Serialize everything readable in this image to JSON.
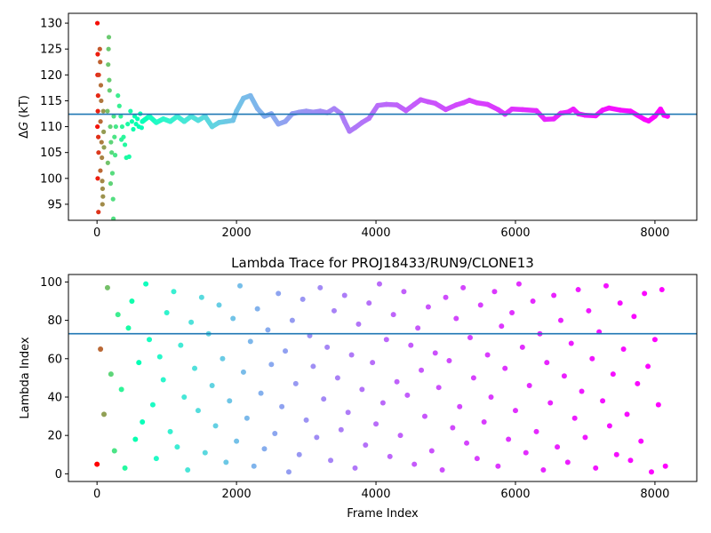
{
  "chart_data": [
    {
      "type": "scatter",
      "title": "",
      "xlabel": "",
      "ylabel_symbol": "Δ",
      "ylabel_var": "G",
      "ylabel_unit": " (kT)",
      "xlim": [
        -410,
        8600
      ],
      "ylim": [
        91.9,
        131.9
      ],
      "xticks": [
        0,
        2000,
        4000,
        6000,
        8000
      ],
      "yticks": [
        95,
        100,
        105,
        110,
        115,
        120,
        125,
        130
      ],
      "hline": 112.4,
      "hline_color": "#1f77b4",
      "colormap": "rainbow",
      "grid": false,
      "early_points": [
        [
          5,
          130
        ],
        [
          10,
          124
        ],
        [
          8,
          120
        ],
        [
          15,
          116
        ],
        [
          12,
          113
        ],
        [
          6,
          110
        ],
        [
          18,
          108
        ],
        [
          10,
          100
        ],
        [
          20,
          93.5
        ],
        [
          25,
          120
        ],
        [
          22,
          105
        ],
        [
          40,
          125
        ],
        [
          45,
          122.5
        ],
        [
          55,
          118
        ],
        [
          60,
          115
        ],
        [
          50,
          111
        ],
        [
          65,
          107
        ],
        [
          70,
          104
        ],
        [
          48,
          101.5
        ],
        [
          75,
          99.5
        ],
        [
          80,
          98
        ],
        [
          85,
          96.5
        ],
        [
          78,
          95
        ],
        [
          90,
          113
        ],
        [
          95,
          109
        ],
        [
          100,
          106
        ],
        [
          170,
          127.3
        ],
        [
          165,
          125
        ],
        [
          160,
          122
        ],
        [
          175,
          119
        ],
        [
          180,
          117
        ],
        [
          150,
          113
        ],
        [
          190,
          110
        ],
        [
          200,
          107
        ],
        [
          210,
          105
        ],
        [
          155,
          103
        ],
        [
          220,
          101
        ],
        [
          195,
          99
        ],
        [
          230,
          96
        ],
        [
          235,
          92.2
        ],
        [
          240,
          112
        ],
        [
          250,
          108
        ],
        [
          260,
          104.5
        ],
        [
          270,
          110
        ],
        [
          300,
          116
        ],
        [
          320,
          114
        ],
        [
          340,
          112
        ],
        [
          360,
          110
        ],
        [
          380,
          108
        ],
        [
          400,
          106.5
        ],
        [
          420,
          104
        ],
        [
          440,
          110.5
        ],
        [
          460,
          104.2
        ],
        [
          350,
          107.5
        ],
        [
          480,
          113
        ],
        [
          500,
          111
        ],
        [
          520,
          109.5
        ],
        [
          540,
          112
        ],
        [
          560,
          110.5
        ],
        [
          580,
          111.5
        ],
        [
          600,
          110
        ],
        [
          620,
          112.5
        ],
        [
          640,
          109.8
        ]
      ],
      "trace": [
        [
          650,
          111
        ],
        [
          750,
          112
        ],
        [
          850,
          110.8
        ],
        [
          950,
          111.5
        ],
        [
          1050,
          111
        ],
        [
          1150,
          112
        ],
        [
          1250,
          111
        ],
        [
          1350,
          112
        ],
        [
          1450,
          111.2
        ],
        [
          1550,
          112
        ],
        [
          1650,
          110
        ],
        [
          1750,
          110.8
        ],
        [
          1850,
          111
        ],
        [
          1950,
          111.2
        ],
        [
          2000,
          113
        ],
        [
          2100,
          115.5
        ],
        [
          2200,
          116
        ],
        [
          2300,
          113.5
        ],
        [
          2400,
          112
        ],
        [
          2500,
          112.5
        ],
        [
          2600,
          110.5
        ],
        [
          2700,
          111
        ],
        [
          2800,
          112.5
        ],
        [
          2900,
          112.8
        ],
        [
          3000,
          113
        ],
        [
          3100,
          112.8
        ],
        [
          3200,
          113
        ],
        [
          3300,
          112.7
        ],
        [
          3400,
          113.5
        ],
        [
          3500,
          112.5
        ],
        [
          3550,
          111
        ],
        [
          3620,
          109.1
        ],
        [
          3700,
          109.8
        ],
        [
          3800,
          110.8
        ],
        [
          3900,
          111.6
        ],
        [
          4025,
          114.1
        ],
        [
          4150,
          114.3
        ],
        [
          4300,
          114.2
        ],
        [
          4430,
          113.1
        ],
        [
          4550,
          114.3
        ],
        [
          4640,
          115.2
        ],
        [
          4750,
          114.8
        ],
        [
          4850,
          114.5
        ],
        [
          5000,
          113.3
        ],
        [
          5150,
          114.2
        ],
        [
          5250,
          114.6
        ],
        [
          5340,
          115.1
        ],
        [
          5450,
          114.6
        ],
        [
          5600,
          114.3
        ],
        [
          5750,
          113.3
        ],
        [
          5850,
          112.4
        ],
        [
          5950,
          113.4
        ],
        [
          6100,
          113.3
        ],
        [
          6300,
          113.1
        ],
        [
          6420,
          111.4
        ],
        [
          6550,
          111.5
        ],
        [
          6650,
          112.6
        ],
        [
          6750,
          112.8
        ],
        [
          6830,
          113.4
        ],
        [
          6900,
          112.5
        ],
        [
          7000,
          112.2
        ],
        [
          7150,
          112.1
        ],
        [
          7250,
          113.2
        ],
        [
          7340,
          113.6
        ],
        [
          7500,
          113.2
        ],
        [
          7650,
          113
        ],
        [
          7750,
          112.2
        ],
        [
          7850,
          111.4
        ],
        [
          7910,
          111.1
        ],
        [
          8000,
          112
        ],
        [
          8080,
          113.4
        ],
        [
          8130,
          112.2
        ],
        [
          8180,
          112
        ]
      ]
    },
    {
      "type": "scatter",
      "title": "Lambda Trace for PROJ18433/RUN9/CLONE13",
      "xlabel": "Frame Index",
      "ylabel": "Lambda Index",
      "xlim": [
        -410,
        8600
      ],
      "ylim": [
        -4,
        103.9
      ],
      "xticks": [
        0,
        2000,
        4000,
        6000,
        8000
      ],
      "yticks": [
        0,
        20,
        40,
        60,
        80,
        100
      ],
      "hline": 73,
      "hline_color": "#1f77b4",
      "colormap": "rainbow",
      "grid": false,
      "x_start": 0,
      "x_step": 50,
      "lambda": [
        5,
        65,
        31,
        97,
        52,
        12,
        83,
        44,
        3,
        76,
        90,
        18,
        58,
        27,
        99,
        70,
        36,
        8,
        61,
        49,
        84,
        22,
        95,
        14,
        67,
        40,
        2,
        79,
        55,
        33,
        92,
        11,
        73,
        46,
        25,
        88,
        60,
        6,
        38,
        81,
        17,
        98,
        53,
        29,
        69,
        4,
        86,
        42,
        13,
        75,
        57,
        21,
        94,
        35,
        64,
        1,
        80,
        47,
        10,
        91,
        28,
        72,
        56,
        19,
        97,
        39,
        66,
        7,
        85,
        50,
        23,
        93,
        32,
        62,
        3,
        78,
        44,
        15,
        89,
        58,
        26,
        99,
        37,
        70,
        9,
        83,
        48,
        20,
        95,
        41,
        67,
        5,
        76,
        54,
        30,
        87,
        12,
        63,
        45,
        2,
        92,
        59,
        24,
        81,
        35,
        97,
        16,
        71,
        50,
        8,
        88,
        27,
        62,
        40,
        95,
        4,
        77,
        55,
        18,
        84,
        33,
        99,
        66,
        11,
        46,
        90,
        22,
        73,
        2,
        58,
        37,
        93,
        14,
        80,
        51,
        6,
        68,
        29,
        96,
        43,
        19,
        85,
        60,
        3,
        74,
        38,
        98,
        25,
        52,
        10,
        89,
        65,
        31,
        7,
        82,
        47,
        17,
        94,
        56,
        1,
        70,
        36,
        96,
        4
      ]
    }
  ]
}
